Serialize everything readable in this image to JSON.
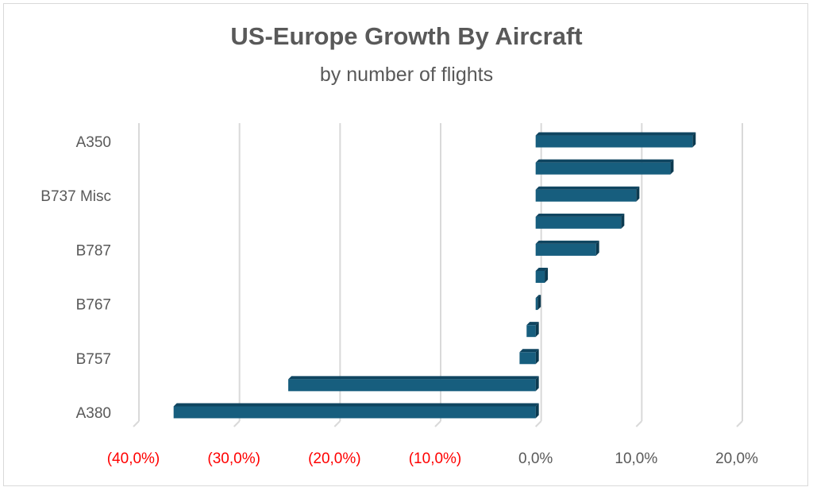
{
  "chart_data": {
    "type": "bar",
    "orientation": "horizontal",
    "style": "3d-clustered",
    "title": "US-Europe Growth By Aircraft",
    "subtitle": "by number of flights",
    "categories": [
      "A350",
      "",
      "B737 Misc",
      "",
      "B787",
      "",
      "B767",
      "",
      "B757",
      "",
      "A380"
    ],
    "values": [
      15.6,
      13.4,
      10.0,
      8.5,
      6.0,
      0.9,
      0.2,
      -0.9,
      -1.6,
      -24.6,
      -36.0
    ],
    "xlim": [
      -40,
      20
    ],
    "xticks": [
      -40,
      -30,
      -20,
      -10,
      0,
      10,
      20
    ],
    "xtick_labels": [
      "(40,0%)",
      "(30,0%)",
      "(20,0%)",
      "(10,0%)",
      "0,0%",
      "10,0%",
      "20,0%"
    ],
    "negative_label_color": "#ff0000",
    "positive_label_color": "#595959",
    "bar_color": "#175e7e",
    "grid": true,
    "legend": "none"
  }
}
